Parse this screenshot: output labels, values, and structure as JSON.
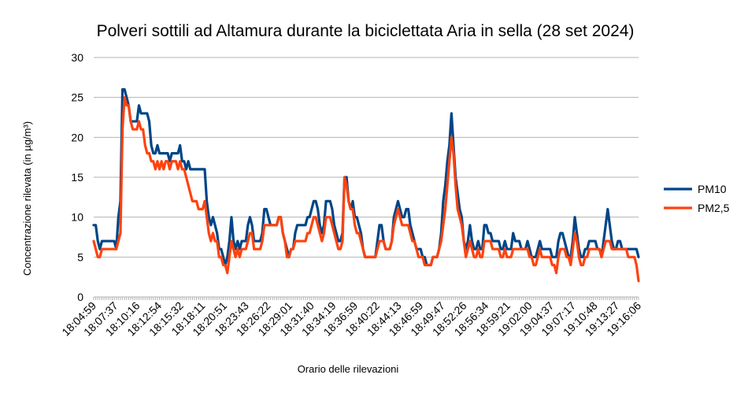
{
  "chart_data": {
    "type": "line",
    "title": "Polveri sottili ad Altamura durante la biciclettata Aria in sella (28 set 2024)",
    "xlabel": "Orario delle rilevazioni",
    "ylabel": "Concentrazione rilevata (in µg/m³)",
    "ylim": [
      0,
      30
    ],
    "yticks": [
      0,
      5,
      10,
      15,
      20,
      25,
      30
    ],
    "grid": "horizontal",
    "legend": "right",
    "xtick_labels": [
      "18:04:59",
      "18:07:37",
      "18:10:16",
      "18:12:54",
      "18:15:32",
      "18:18:11",
      "18:20:51",
      "18:23:43",
      "18:26:22",
      "18:29:01",
      "18:31:40",
      "18:34:19",
      "18:36:59",
      "18:40:22",
      "18:44:13",
      "18:46:59",
      "18:49:47",
      "18:52:26",
      "18:56:34",
      "18:59:21",
      "19:02:00",
      "19:04:37",
      "19:07:17",
      "19:10:48",
      "19:13:27",
      "19:16:06"
    ],
    "series": [
      {
        "name": "PM10",
        "color": "#004586",
        "values": [
          9,
          9,
          7,
          6,
          7,
          7,
          7,
          7,
          7,
          7,
          7,
          6,
          10,
          12,
          26,
          26,
          25,
          24,
          22,
          22,
          22,
          22,
          24,
          23,
          23,
          23,
          23,
          22,
          19,
          18,
          18,
          19,
          18,
          18,
          18,
          18,
          18,
          17,
          18,
          18,
          18,
          18,
          19,
          17,
          17,
          16,
          17,
          16,
          16,
          16,
          16,
          16,
          16,
          16,
          16,
          12,
          10,
          9,
          10,
          9,
          8,
          6,
          6,
          5,
          4,
          5,
          7,
          10,
          7,
          6,
          7,
          6,
          7,
          7,
          7,
          9,
          10,
          9,
          7,
          7,
          7,
          7,
          8,
          11,
          11,
          10,
          9,
          9,
          9,
          9,
          10,
          10,
          8,
          7,
          6,
          5,
          6,
          6,
          8,
          9,
          9,
          9,
          9,
          9,
          10,
          10,
          11,
          12,
          12,
          11,
          9,
          8,
          9,
          12,
          12,
          12,
          11,
          9,
          8,
          7,
          7,
          8,
          15,
          15,
          12,
          11,
          12,
          10,
          10,
          9,
          8,
          6,
          5,
          5,
          5,
          5,
          5,
          5,
          7,
          9,
          9,
          7,
          6,
          6,
          6,
          7,
          10,
          11,
          12,
          11,
          10,
          10,
          11,
          11,
          9,
          8,
          7,
          6,
          6,
          6,
          5,
          5,
          4,
          4,
          4,
          5,
          5,
          5,
          6,
          8,
          12,
          14,
          17,
          19,
          23,
          19,
          15,
          13,
          11,
          10,
          7,
          6,
          7,
          9,
          7,
          6,
          6,
          7,
          6,
          6,
          9,
          9,
          8,
          8,
          7,
          7,
          7,
          7,
          6,
          6,
          7,
          6,
          6,
          6,
          8,
          7,
          7,
          7,
          6,
          6,
          6,
          7,
          6,
          5,
          5,
          5,
          6,
          7,
          6,
          6,
          6,
          6,
          6,
          5,
          5,
          5,
          7,
          8,
          8,
          7,
          6,
          5,
          5,
          7,
          10,
          8,
          6,
          5,
          5,
          6,
          6,
          7,
          7,
          7,
          7,
          6,
          6,
          5,
          7,
          9,
          11,
          9,
          7,
          6,
          6,
          7,
          7,
          6,
          6,
          6,
          6,
          6,
          6,
          6,
          6,
          5
        ]
      },
      {
        "name": "PM2,5",
        "color": "#ff420e",
        "values": [
          7,
          6,
          5,
          5,
          6,
          6,
          6,
          6,
          6,
          6,
          6,
          6,
          7,
          8,
          21,
          25,
          24,
          24,
          22,
          21,
          21,
          21,
          22,
          21,
          21,
          19,
          18,
          18,
          17,
          17,
          16,
          17,
          16,
          17,
          16,
          17,
          17,
          16,
          17,
          17,
          17,
          16,
          17,
          16,
          16,
          15,
          14,
          13,
          12,
          12,
          12,
          11,
          11,
          11,
          12,
          10,
          8,
          7,
          8,
          7,
          7,
          5,
          5,
          4,
          4,
          3,
          5,
          7,
          6,
          5,
          6,
          5,
          6,
          6,
          6,
          7,
          8,
          8,
          6,
          6,
          6,
          6,
          7,
          9,
          9,
          9,
          9,
          9,
          9,
          9,
          10,
          10,
          8,
          7,
          5,
          5,
          6,
          6,
          7,
          7,
          7,
          7,
          7,
          7,
          8,
          8,
          9,
          10,
          10,
          9,
          8,
          7,
          8,
          10,
          10,
          10,
          9,
          8,
          7,
          6,
          6,
          7,
          15,
          14,
          12,
          11,
          11,
          9,
          8,
          8,
          7,
          6,
          5,
          5,
          5,
          5,
          5,
          5,
          6,
          7,
          7,
          7,
          6,
          6,
          6,
          7,
          9,
          10,
          11,
          10,
          9,
          9,
          9,
          9,
          8,
          7,
          7,
          6,
          5,
          5,
          5,
          4,
          4,
          4,
          4,
          5,
          5,
          5,
          6,
          7,
          9,
          11,
          14,
          17,
          20,
          18,
          14,
          11,
          10,
          9,
          7,
          5,
          6,
          7,
          6,
          5,
          5,
          6,
          5,
          5,
          7,
          7,
          7,
          7,
          6,
          6,
          6,
          6,
          5,
          5,
          6,
          5,
          5,
          5,
          6,
          6,
          6,
          6,
          6,
          6,
          6,
          6,
          5,
          5,
          4,
          4,
          5,
          6,
          5,
          5,
          5,
          5,
          5,
          4,
          4,
          3,
          5,
          6,
          6,
          6,
          5,
          5,
          4,
          6,
          8,
          7,
          5,
          4,
          4,
          5,
          5,
          6,
          6,
          6,
          6,
          6,
          6,
          5,
          6,
          7,
          7,
          7,
          6,
          6,
          6,
          6,
          6,
          6,
          6,
          6,
          5,
          5,
          5,
          5,
          4,
          2
        ]
      }
    ]
  }
}
